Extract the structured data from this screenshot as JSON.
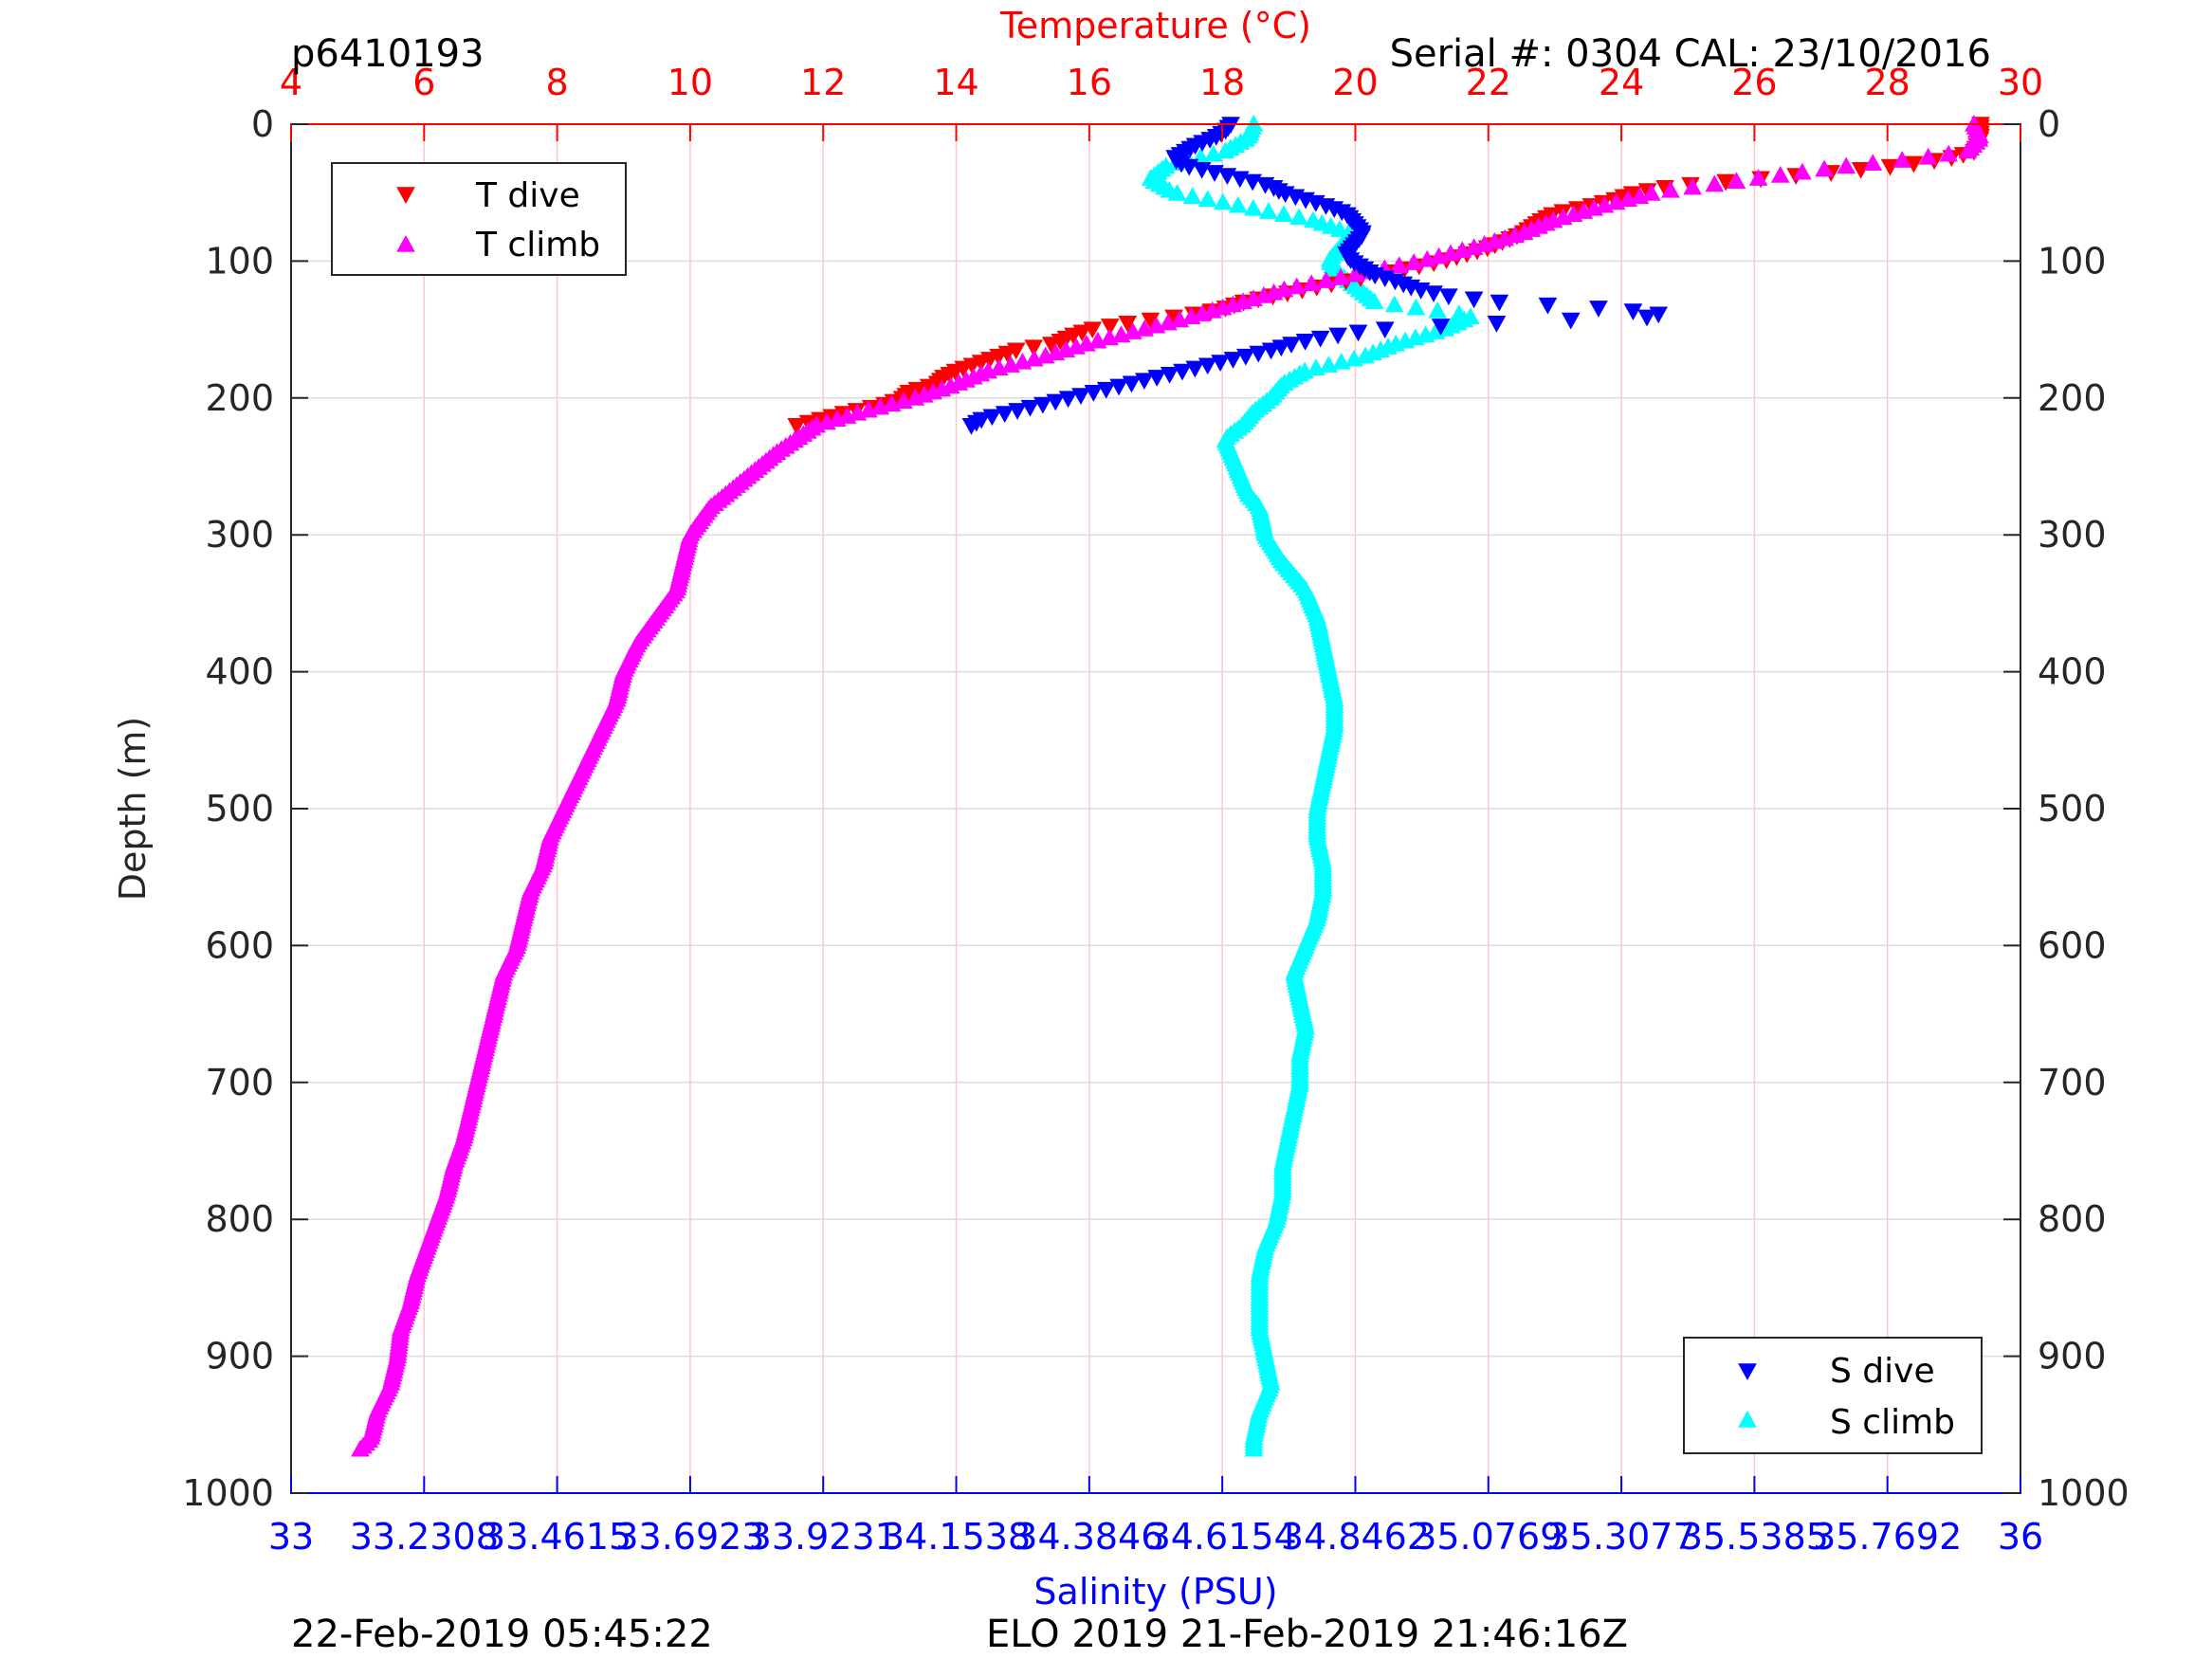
{
  "header": {
    "glider_id": "p6410193",
    "serial": "Serial #: 0304  CAL: 23/10/2016"
  },
  "footer": {
    "timestamp_left": "22-Feb-2019 05:45:22",
    "timestamp_right": "ELO 2019 21-Feb-2019 21:46:16Z"
  },
  "colors": {
    "t_dive": "#ff0000",
    "t_climb": "#ff00ff",
    "s_dive": "#0000ff",
    "s_climb": "#00ffff",
    "temp_axis": "#ff0000",
    "sal_axis": "#0000ff",
    "temp_grid": "#ffc8c8",
    "depth_grid": "#dcdcdc"
  },
  "chart_data": {
    "type": "scatter",
    "y_axis": {
      "label": "Depth (m)",
      "range": [
        0,
        1000
      ],
      "reversed": true,
      "ticks": [
        "0",
        "100",
        "200",
        "300",
        "400",
        "500",
        "600",
        "700",
        "800",
        "900",
        "1000"
      ]
    },
    "temperature_axis": {
      "label": "Temperature (°C)",
      "position": "top",
      "range": [
        4,
        30
      ],
      "ticks": [
        "4",
        "6",
        "8",
        "10",
        "12",
        "14",
        "16",
        "18",
        "20",
        "22",
        "24",
        "26",
        "28",
        "30"
      ]
    },
    "salinity_axis": {
      "label": "Salinity (PSU)",
      "position": "bottom",
      "range": [
        33,
        36
      ],
      "ticks": [
        "33",
        "33.2308",
        "33.4615",
        "33.6923",
        "33.9231",
        "34.1538",
        "34.3846",
        "34.6154",
        "34.8462",
        "35.0769",
        "35.3077",
        "35.5385",
        "35.7692",
        "36"
      ]
    },
    "grid": true,
    "legends": [
      {
        "placement": "top-left",
        "entries": [
          "T dive",
          "T climb"
        ]
      },
      {
        "placement": "bottom-right",
        "entries": [
          "S dive",
          "S climb"
        ]
      }
    ],
    "series": [
      {
        "name": "T dive",
        "axis": "temperature",
        "marker": "triangle-down",
        "depth": [
          0,
          10,
          20,
          25,
          30,
          35,
          40,
          45,
          50,
          55,
          60,
          65,
          70,
          80,
          90,
          100,
          105,
          110,
          115,
          120,
          125,
          130,
          135,
          140,
          145,
          150,
          155,
          160,
          165,
          170,
          175,
          180,
          185,
          190,
          195,
          200,
          205,
          210,
          215,
          220
        ],
        "temp": [
          29.4,
          29.4,
          29.3,
          28.9,
          28.2,
          27.2,
          26.0,
          24.8,
          24.2,
          23.9,
          23.5,
          23.0,
          22.8,
          22.5,
          22.0,
          21.3,
          20.8,
          20.3,
          19.8,
          19.3,
          18.8,
          18.3,
          18.0,
          17.4,
          16.6,
          16.0,
          15.7,
          15.5,
          14.9,
          14.6,
          14.3,
          14.0,
          13.8,
          13.7,
          13.3,
          13.2,
          12.9,
          12.4,
          12.0,
          11.6
        ]
      },
      {
        "name": "T climb",
        "axis": "temperature",
        "marker": "triangle-up",
        "depth": [
          0,
          10,
          20,
          25,
          30,
          40,
          50,
          60,
          70,
          80,
          90,
          100,
          110,
          120,
          130,
          140,
          150,
          160,
          170,
          180,
          190,
          200,
          210,
          220,
          240,
          260,
          280,
          300,
          320,
          340,
          360,
          380,
          400,
          420,
          440,
          460,
          480,
          500,
          520,
          540,
          560,
          580,
          600,
          620,
          640,
          660,
          680,
          700,
          720,
          740,
          760,
          780,
          800,
          820,
          840,
          860,
          880,
          900,
          920,
          940,
          960,
          970
        ],
        "temp": [
          29.3,
          29.4,
          29.2,
          28.5,
          27.5,
          26.0,
          24.5,
          23.7,
          23.0,
          22.5,
          21.8,
          21.0,
          20.0,
          19.0,
          18.3,
          17.6,
          16.8,
          16.0,
          15.3,
          14.5,
          14.0,
          13.4,
          12.6,
          11.9,
          11.3,
          10.8,
          10.3,
          10.0,
          9.9,
          9.8,
          9.5,
          9.2,
          9.0,
          8.9,
          8.7,
          8.5,
          8.3,
          8.1,
          7.9,
          7.8,
          7.6,
          7.5,
          7.4,
          7.2,
          7.1,
          7.0,
          6.9,
          6.8,
          6.7,
          6.6,
          6.45,
          6.35,
          6.2,
          6.05,
          5.9,
          5.8,
          5.65,
          5.6,
          5.5,
          5.3,
          5.2,
          5.0
        ]
      },
      {
        "name": "S dive",
        "axis": "salinity",
        "marker": "triangle-down",
        "depth": [
          0,
          5,
          10,
          15,
          20,
          25,
          30,
          35,
          40,
          45,
          50,
          55,
          60,
          65,
          70,
          75,
          80,
          85,
          90,
          95,
          100,
          105,
          110,
          115,
          120,
          125,
          130,
          135,
          140,
          145,
          150,
          155,
          160,
          165,
          170,
          175,
          180,
          185,
          190,
          195,
          200,
          205,
          210,
          215,
          220
        ],
        "sal": [
          34.63,
          34.62,
          34.6,
          34.57,
          34.55,
          34.53,
          34.55,
          34.6,
          34.65,
          34.7,
          34.72,
          34.76,
          34.8,
          34.83,
          34.84,
          34.85,
          34.86,
          34.85,
          34.84,
          34.83,
          34.84,
          34.86,
          34.88,
          34.92,
          34.95,
          35.0,
          35.1,
          35.3,
          35.4,
          35.1,
          34.88,
          34.8,
          34.74,
          34.7,
          34.65,
          34.6,
          34.55,
          34.5,
          34.45,
          34.4,
          34.35,
          34.3,
          34.25,
          34.2,
          34.18
        ]
      },
      {
        "name": "S climb",
        "axis": "salinity",
        "marker": "triangle-up",
        "depth": [
          0,
          10,
          20,
          30,
          40,
          50,
          60,
          70,
          80,
          90,
          100,
          110,
          120,
          130,
          140,
          150,
          160,
          170,
          180,
          190,
          200,
          210,
          220,
          230,
          240,
          250,
          260,
          270,
          280,
          300,
          320,
          340,
          360,
          380,
          400,
          420,
          440,
          460,
          480,
          500,
          520,
          540,
          560,
          580,
          600,
          620,
          640,
          660,
          680,
          700,
          720,
          740,
          760,
          780,
          800,
          820,
          840,
          860,
          880,
          900,
          920,
          940,
          960,
          970
        ],
        "sal": [
          34.67,
          34.66,
          34.62,
          34.52,
          34.49,
          34.53,
          34.65,
          34.77,
          34.84,
          34.82,
          34.8,
          34.82,
          34.85,
          34.88,
          35.05,
          35.0,
          34.92,
          34.86,
          34.76,
          34.72,
          34.7,
          34.67,
          34.65,
          34.62,
          34.63,
          34.64,
          34.65,
          34.66,
          34.68,
          34.69,
          34.72,
          34.76,
          34.78,
          34.79,
          34.8,
          34.81,
          34.81,
          34.8,
          34.79,
          34.78,
          34.78,
          34.79,
          34.79,
          34.78,
          34.76,
          34.74,
          34.75,
          34.76,
          34.75,
          34.75,
          34.74,
          34.73,
          34.72,
          34.72,
          34.71,
          34.69,
          34.68,
          34.68,
          34.68,
          34.69,
          34.7,
          34.68,
          34.67,
          34.67
        ]
      }
    ]
  }
}
